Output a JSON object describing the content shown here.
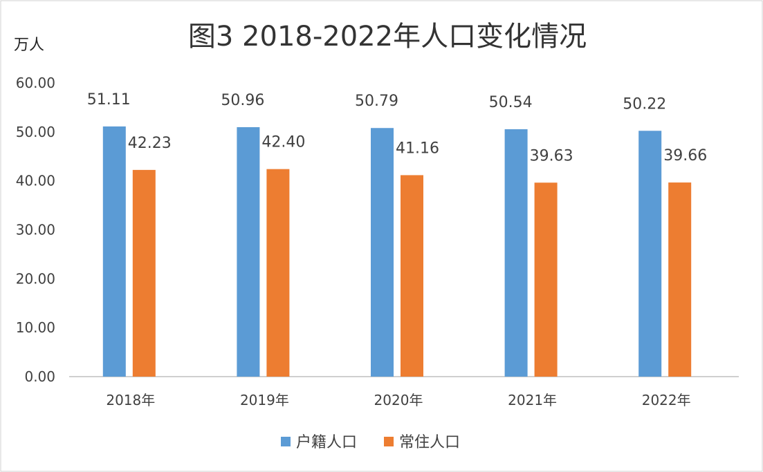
{
  "chart_data": {
    "type": "bar",
    "title": "图3  2018-2022年人口变化情况",
    "unit_label": "万人",
    "categories": [
      "2018年",
      "2019年",
      "2020年",
      "2021年",
      "2022年"
    ],
    "series": [
      {
        "name": "户籍人口",
        "color": "#5B9BD5",
        "values": [
          51.11,
          50.96,
          50.79,
          50.54,
          50.22
        ]
      },
      {
        "name": "常住人口",
        "color": "#ED7D31",
        "values": [
          42.23,
          42.4,
          41.16,
          39.63,
          39.66
        ]
      }
    ],
    "ylim": [
      0,
      60
    ],
    "yticks": [
      "0.00",
      "10.00",
      "20.00",
      "30.00",
      "40.00",
      "50.00",
      "60.00"
    ],
    "grid": false,
    "legend_position": "bottom"
  }
}
